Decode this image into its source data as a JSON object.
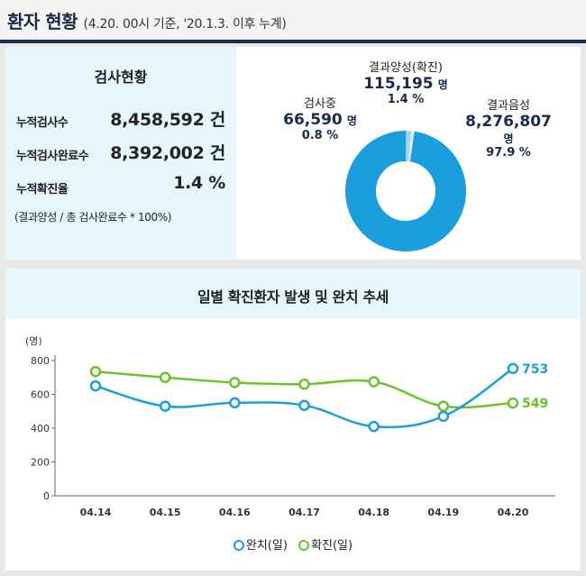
{
  "header": {
    "title": "환자 현황",
    "subtitle": "(4.20. 00시 기준, '20.1.3. 이후 누계)"
  },
  "test_status": {
    "title": "검사현황",
    "rows": [
      {
        "label": "누적검사수",
        "value": "8,458,592 건"
      },
      {
        "label": "누적검사완료수",
        "value": "8,392,002 건"
      },
      {
        "label": "누적확진율",
        "value": "1.4 %"
      }
    ],
    "note": "(결과양성 / 총 검사완료수 * 100%)"
  },
  "donut": {
    "testing": {
      "name": "검사중",
      "num": "66,590",
      "unit": "명",
      "pct": "0.8 %"
    },
    "positive": {
      "name": "결과양성(확진)",
      "num": "115,195",
      "unit": "명",
      "pct": "1.4 %"
    },
    "negative": {
      "name": "결과음성",
      "num": "8,276,807",
      "unit": "명",
      "pct": "97.9 %"
    },
    "colors": {
      "negative": "#1a9fdc",
      "positive": "#a9d4ec",
      "testing": "#d8eef8"
    }
  },
  "chart_data": {
    "type": "line",
    "title": "일별 확진환자 발생 및 완치 추세",
    "ylabel": "(명)",
    "ylim": [
      0,
      800
    ],
    "yticks": [
      0,
      200,
      400,
      600,
      800
    ],
    "categories": [
      "04.14",
      "04.15",
      "04.16",
      "04.17",
      "04.18",
      "04.19",
      "04.20"
    ],
    "series": [
      {
        "name": "완치(일)",
        "color": "#1a9fdc",
        "values": [
          650,
          530,
          550,
          535,
          410,
          470,
          753
        ]
      },
      {
        "name": "확진(일)",
        "color": "#6cc22a",
        "values": [
          735,
          700,
          670,
          660,
          675,
          530,
          549
        ]
      }
    ],
    "end_labels": [
      "753",
      "549"
    ],
    "grid": false,
    "legend": "bottom-center"
  }
}
